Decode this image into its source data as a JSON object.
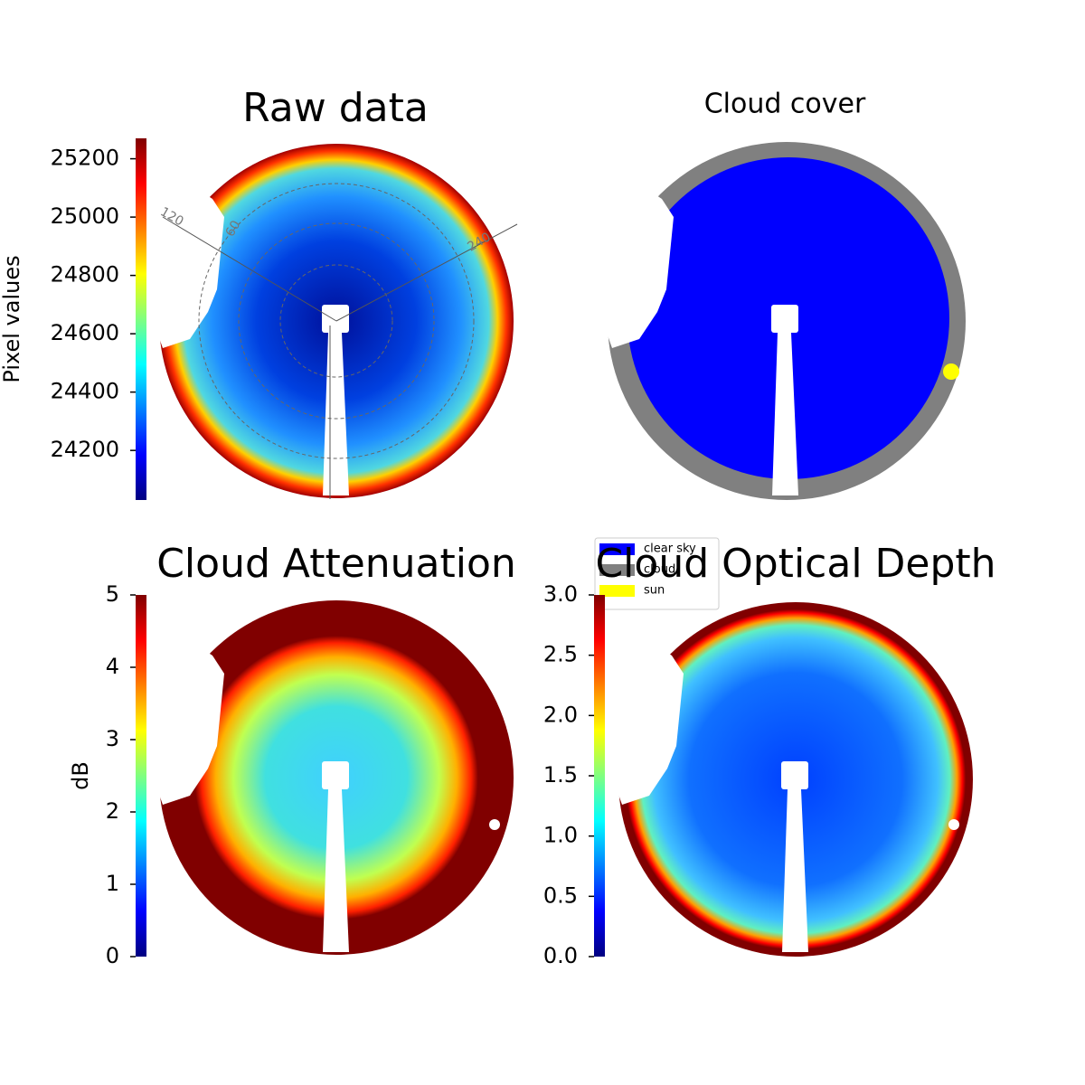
{
  "chart_data": [
    {
      "type": "image",
      "title": "Raw data",
      "colorbar": {
        "label": "Pixel values",
        "colormap": "jet",
        "lim": [
          24030,
          25270
        ],
        "ticks": [
          24200,
          24400,
          24600,
          24800,
          25000,
          25200
        ]
      },
      "polar_labels": [
        "120",
        "60",
        "240"
      ]
    },
    {
      "type": "classification",
      "title": "Cloud cover",
      "legend": [
        {
          "name": "clear sky",
          "color": "#0000ff"
        },
        {
          "name": "cloud",
          "color": "#808080"
        },
        {
          "name": "sun",
          "color": "#ffff00"
        }
      ]
    },
    {
      "type": "image",
      "title": "Cloud Attenuation",
      "colorbar": {
        "label": "dB",
        "colormap": "jet",
        "lim": [
          0,
          5
        ],
        "ticks": [
          0,
          1,
          2,
          3,
          4,
          5
        ]
      }
    },
    {
      "type": "image",
      "title": "Cloud Optical Depth",
      "colorbar": {
        "colormap": "jet",
        "lim": [
          0,
          3
        ],
        "ticks": [
          {
            "value": 0,
            "label": "0.0"
          },
          {
            "value": 0.5,
            "label": "0.5"
          },
          {
            "value": 1,
            "label": "1.0"
          },
          {
            "value": 1.5,
            "label": "1.5"
          },
          {
            "value": 2,
            "label": "2.0"
          },
          {
            "value": 2.5,
            "label": "2.5"
          },
          {
            "value": 3,
            "label": "3.0"
          }
        ]
      }
    }
  ]
}
